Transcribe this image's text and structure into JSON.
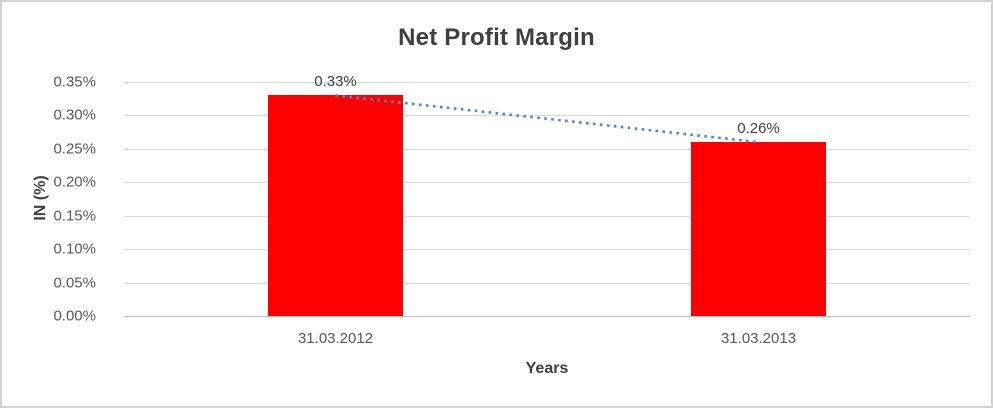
{
  "chart_data": {
    "type": "bar",
    "title": "Net Profit Margin",
    "xlabel": "Years",
    "ylabel": "IN (%)",
    "categories": [
      "31.03.2012",
      "31.03.2013"
    ],
    "values": [
      0.33,
      0.26
    ],
    "value_labels": [
      "0.33%",
      "0.26%"
    ],
    "ylim": [
      0,
      0.35
    ],
    "ytick_step": 0.05,
    "ytick_labels": [
      "0.00%",
      "0.05%",
      "0.10%",
      "0.15%",
      "0.20%",
      "0.25%",
      "0.30%",
      "0.35%"
    ],
    "grid": true,
    "legend": false,
    "colors": {
      "bar": "#FF0000",
      "trendline": "#4E87C9",
      "title_text": "#3F3F3F",
      "axis_text": "#595959",
      "gridline": "#D9D9D9",
      "axis_line": "#BFBFBF"
    },
    "trendline": {
      "type": "linear",
      "style": "dotted",
      "from_value": 0.33,
      "to_value": 0.26
    }
  }
}
